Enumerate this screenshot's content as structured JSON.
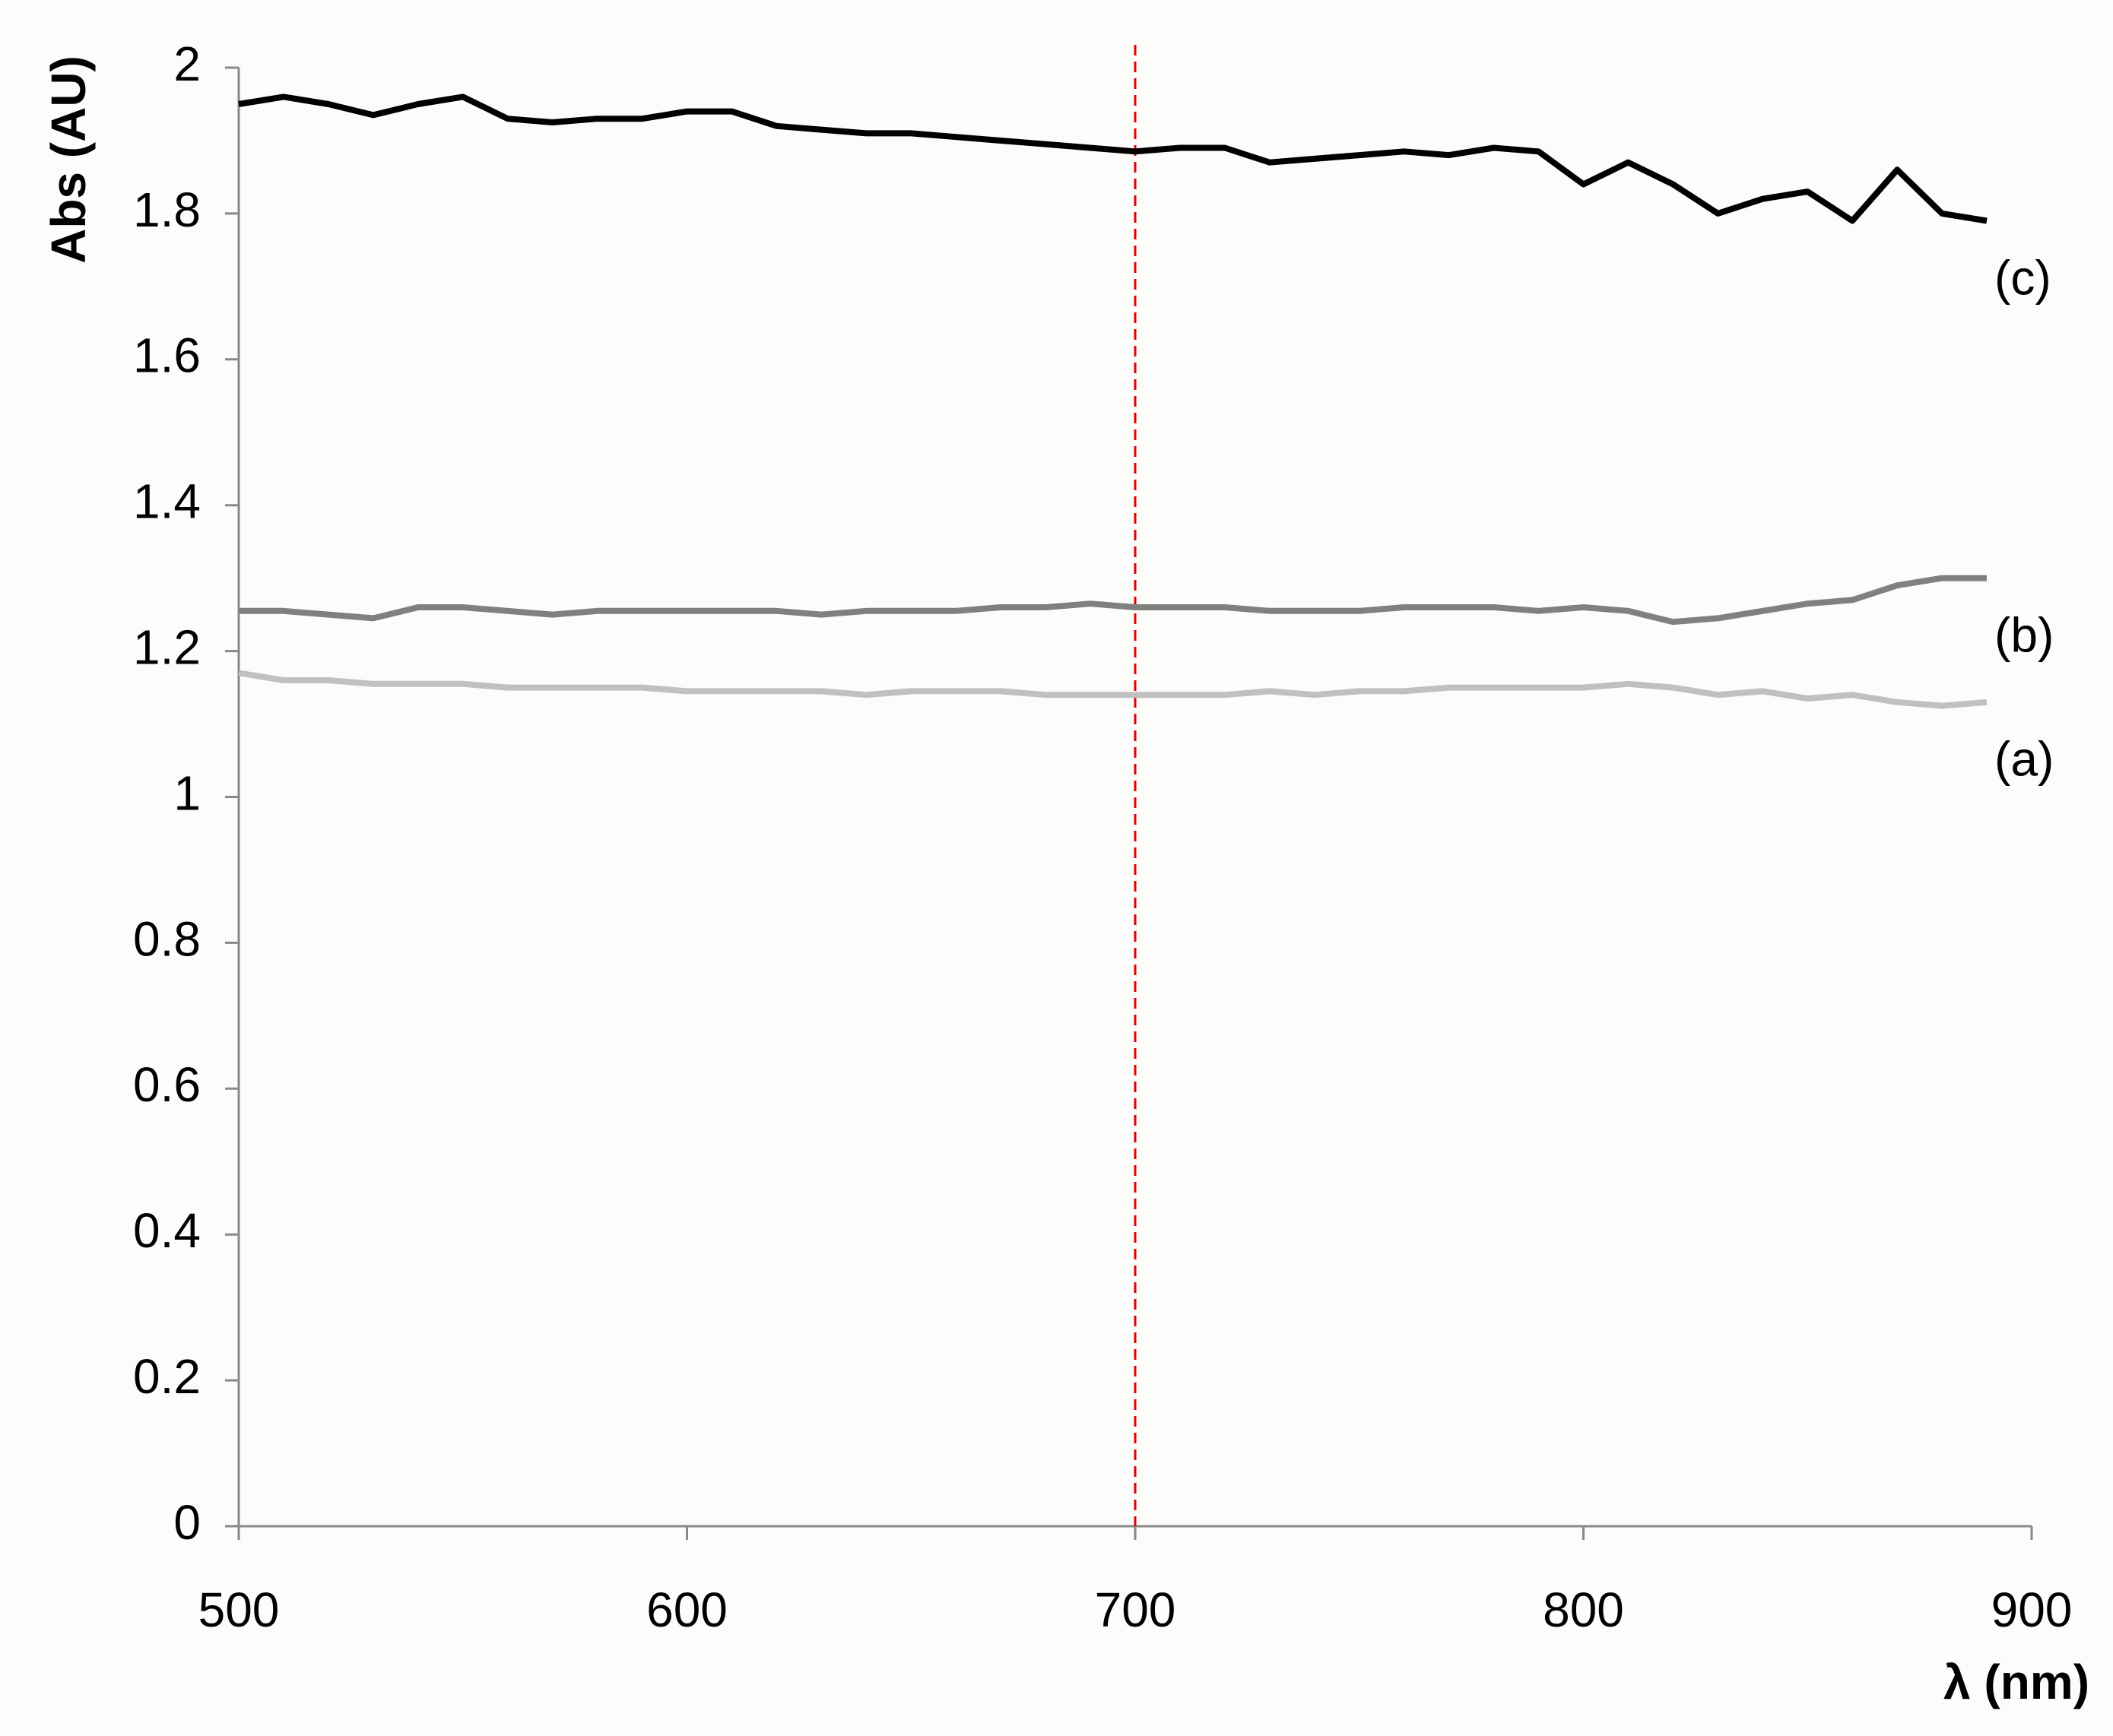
{
  "chart_data": {
    "type": "line",
    "x_label": "λ (nm)",
    "y_label": "Abs (AU)",
    "x": [
      500,
      510,
      520,
      530,
      540,
      550,
      560,
      570,
      580,
      590,
      600,
      610,
      620,
      630,
      640,
      650,
      660,
      670,
      680,
      690,
      700,
      710,
      720,
      730,
      740,
      750,
      760,
      770,
      780,
      790,
      800,
      810,
      820,
      830,
      840,
      850,
      860,
      870,
      880,
      890
    ],
    "series": [
      {
        "name": "(a)",
        "color": "#c0c0c0",
        "values": [
          1.17,
          1.16,
          1.16,
          1.155,
          1.155,
          1.155,
          1.15,
          1.15,
          1.15,
          1.15,
          1.145,
          1.145,
          1.145,
          1.145,
          1.14,
          1.145,
          1.145,
          1.145,
          1.14,
          1.14,
          1.14,
          1.14,
          1.14,
          1.145,
          1.14,
          1.145,
          1.145,
          1.15,
          1.15,
          1.15,
          1.15,
          1.155,
          1.15,
          1.14,
          1.145,
          1.135,
          1.14,
          1.13,
          1.125,
          1.13
        ]
      },
      {
        "name": "(b)",
        "color": "#808080",
        "values": [
          1.255,
          1.255,
          1.25,
          1.245,
          1.26,
          1.26,
          1.255,
          1.25,
          1.255,
          1.255,
          1.255,
          1.255,
          1.255,
          1.25,
          1.255,
          1.255,
          1.255,
          1.26,
          1.26,
          1.265,
          1.26,
          1.26,
          1.26,
          1.255,
          1.255,
          1.255,
          1.26,
          1.26,
          1.26,
          1.255,
          1.26,
          1.255,
          1.24,
          1.245,
          1.255,
          1.265,
          1.27,
          1.29,
          1.3,
          1.3
        ]
      },
      {
        "name": "(c)",
        "color": "#000000",
        "values": [
          1.95,
          1.96,
          1.95,
          1.935,
          1.95,
          1.96,
          1.93,
          1.925,
          1.93,
          1.93,
          1.94,
          1.94,
          1.92,
          1.915,
          1.91,
          1.91,
          1.905,
          1.9,
          1.895,
          1.89,
          1.885,
          1.89,
          1.89,
          1.87,
          1.875,
          1.88,
          1.885,
          1.88,
          1.89,
          1.885,
          1.84,
          1.87,
          1.84,
          1.8,
          1.82,
          1.83,
          1.79,
          1.86,
          1.8,
          1.79
        ]
      }
    ],
    "reference_line": {
      "x": 700,
      "color": "#e00000"
    },
    "xlim": [
      500,
      900
    ],
    "xticks": [
      500,
      600,
      700,
      800,
      900
    ],
    "ylim": [
      0,
      2
    ],
    "yticks": [
      0,
      0.2,
      0.4,
      0.6,
      0.8,
      1,
      1.2,
      1.4,
      1.6,
      1.8,
      2
    ],
    "grid": false
  }
}
